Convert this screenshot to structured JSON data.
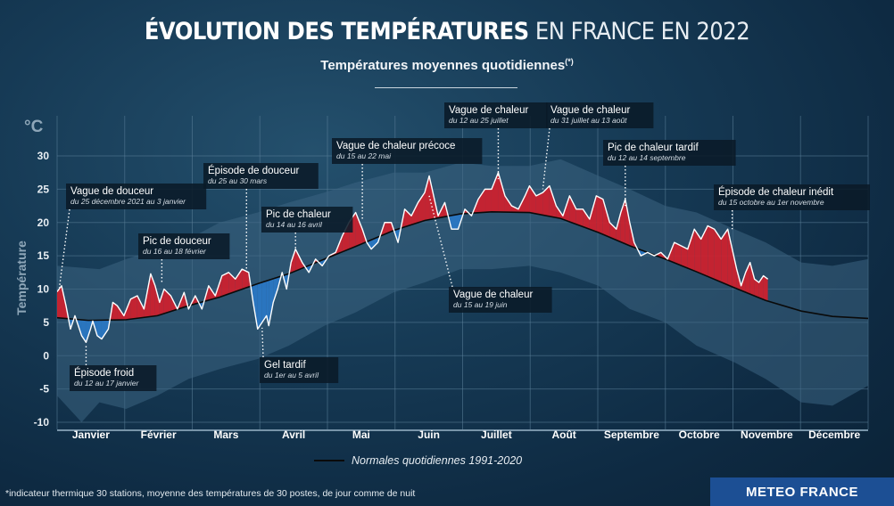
{
  "header": {
    "title_bold": "ÉVOLUTION DES TEMPÉRATURES",
    "title_light": "EN FRANCE EN 2022",
    "subtitle": "Températures moyennes quotidiennes",
    "subtitle_mark": "(*)"
  },
  "footer": {
    "note": "*indicateur thermique 30 stations, moyenne des températures de 30 postes, de jour comme de nuit",
    "brand": "METEO FRANCE"
  },
  "legend": {
    "normal_label": "Normales quotidiennes 1991-2020"
  },
  "colors": {
    "warm_fill": "#d01f2c",
    "cold_fill": "#2a78c6",
    "daily_line": "#ffffff",
    "normal_line": "#0a0a0a",
    "record_band": "#3c6582",
    "grid": "#5a7e98",
    "brand_bg": "#1c4f94"
  },
  "chart_data": {
    "type": "area",
    "title": "ÉVOLUTION DES TEMPÉRATURES EN FRANCE EN 2022",
    "subtitle": "Températures moyennes quotidiennes(*)",
    "ylabel": "Température",
    "yunit": "°C",
    "xlabel": "",
    "ylim": [
      -10,
      30
    ],
    "yticks": [
      "30",
      "25",
      "20",
      "15",
      "10",
      "5",
      "0",
      "-5",
      "-10"
    ],
    "xlim": [
      1,
      365
    ],
    "categories": [
      "Janvier",
      "Février",
      "Mars",
      "Avril",
      "Mai",
      "Juin",
      "Juillet",
      "Août",
      "Septembre",
      "Octobre",
      "Novembre",
      "Décembre"
    ],
    "grid": true,
    "legend_position": "bottom",
    "series": [
      {
        "name": "",
        "role": "daily_2022",
        "x": [
          1,
          3,
          5,
          7,
          9,
          12,
          14,
          16,
          17,
          19,
          21,
          24,
          26,
          28,
          31,
          34,
          37,
          40,
          43,
          45,
          47,
          49,
          52,
          55,
          58,
          60,
          63,
          66,
          69,
          72,
          75,
          78,
          81,
          84,
          87,
          89,
          91,
          93,
          95,
          96,
          98,
          100,
          102,
          104,
          106,
          108,
          111,
          114,
          117,
          120,
          123,
          126,
          129,
          132,
          135,
          138,
          140,
          142,
          145,
          148,
          151,
          154,
          157,
          160,
          163,
          166,
          168,
          170,
          172,
          175,
          178,
          181,
          184,
          187,
          190,
          193,
          196,
          199,
          202,
          205,
          208,
          211,
          213,
          216,
          219,
          222,
          225,
          228,
          231,
          234,
          237,
          240,
          243,
          246,
          249,
          252,
          254,
          256,
          258,
          260,
          263,
          266,
          269,
          272,
          275,
          278,
          281,
          284,
          287,
          290,
          293,
          296,
          299,
          302,
          304,
          306,
          308,
          310,
          312,
          314,
          316,
          318,
          320
        ],
        "values": [
          9.6,
          10.5,
          7.5,
          4.0,
          6.0,
          3.0,
          2.0,
          4.0,
          5.2,
          3.0,
          2.5,
          4.0,
          8.0,
          7.5,
          6.0,
          8.5,
          9.0,
          7.0,
          12.3,
          10.5,
          8.0,
          10.0,
          9.0,
          7.0,
          9.5,
          7.0,
          9.0,
          7.0,
          10.5,
          9.0,
          12.0,
          12.5,
          11.5,
          13.0,
          12.5,
          8.0,
          4.0,
          5.0,
          6.0,
          4.5,
          8.0,
          10.0,
          12.5,
          10.0,
          14.0,
          16.0,
          14.0,
          12.5,
          14.5,
          13.5,
          15.0,
          15.5,
          18.0,
          20.0,
          21.5,
          19.0,
          17.0,
          16.0,
          17.0,
          20.0,
          20.0,
          17.0,
          22.0,
          21.0,
          23.0,
          24.5,
          27.0,
          24.0,
          21.0,
          23.0,
          19.0,
          19.0,
          22.0,
          21.0,
          23.5,
          25.0,
          25.0,
          27.5,
          24.0,
          22.5,
          22.0,
          24.0,
          25.5,
          24.0,
          24.5,
          25.5,
          22.5,
          21.0,
          24.0,
          22.0,
          22.0,
          20.5,
          24.0,
          23.5,
          20.0,
          19.0,
          21.5,
          23.5,
          20.0,
          17.0,
          15.0,
          15.5,
          15.0,
          15.5,
          14.5,
          17.0,
          16.5,
          16.0,
          19.0,
          17.5,
          19.5,
          19.0,
          17.5,
          19.0,
          16.0,
          13.0,
          10.5,
          12.5,
          14.0,
          11.5,
          11.0,
          12.0,
          11.5
        ]
      },
      {
        "name": "Normales quotidiennes 1991-2020",
        "role": "normal",
        "x": [
          1,
          15,
          32,
          46,
          60,
          74,
          91,
          105,
          121,
          135,
          152,
          166,
          182,
          196,
          213,
          227,
          244,
          258,
          274,
          288,
          305,
          319,
          335,
          349,
          365
        ],
        "values": [
          5.7,
          5.3,
          5.4,
          6.0,
          7.5,
          8.8,
          10.8,
          12.3,
          14.5,
          16.4,
          18.8,
          20.3,
          21.3,
          21.6,
          21.5,
          20.6,
          18.5,
          16.5,
          14.5,
          12.6,
          10.2,
          8.3,
          6.7,
          5.9,
          5.6
        ]
      },
      {
        "name": "",
        "role": "record_max",
        "x": [
          1,
          20,
          32,
          46,
          60,
          74,
          91,
          105,
          121,
          135,
          152,
          166,
          182,
          196,
          213,
          227,
          244,
          258,
          274,
          288,
          305,
          319,
          335,
          349,
          365
        ],
        "values": [
          13.5,
          13.0,
          14.5,
          16.0,
          17.5,
          20.0,
          21.5,
          23.0,
          24.5,
          26.0,
          27.5,
          27.5,
          29.0,
          28.5,
          28.5,
          29.5,
          27.0,
          25.0,
          22.5,
          21.5,
          19.0,
          17.0,
          14.0,
          13.5,
          14.5
        ]
      },
      {
        "name": "",
        "role": "record_min",
        "x": [
          1,
          12,
          20,
          32,
          46,
          60,
          74,
          91,
          105,
          121,
          135,
          152,
          166,
          182,
          196,
          213,
          227,
          244,
          258,
          274,
          288,
          305,
          319,
          335,
          349,
          365
        ],
        "values": [
          -6.0,
          -10.0,
          -7.0,
          -8.0,
          -6.0,
          -3.5,
          -2.0,
          -0.5,
          1.5,
          4.5,
          6.5,
          9.5,
          11.0,
          13.0,
          13.0,
          13.5,
          12.5,
          10.5,
          7.0,
          5.0,
          1.5,
          -1.0,
          -3.5,
          -7.0,
          -7.5,
          -4.5
        ]
      }
    ],
    "annotations": [
      {
        "title": "Vague de douceur",
        "dates": "du 25 décembre 2021 au 3 janvier",
        "x": 2,
        "y": 10.2,
        "label_y": 26.2
      },
      {
        "title": "Épisode froid",
        "dates": "du 12 au 17 janvier",
        "x": 14,
        "y": 1.6,
        "label_y": -1.0
      },
      {
        "title": "Pic de douceur",
        "dates": "du 16 au 18 février",
        "x": 48,
        "y": 11.0,
        "label_y": 17.2
      },
      {
        "title": "Épisode de douceur",
        "dates": "du 25 au 30 mars",
        "x": 86,
        "y": 13.0,
        "label_y": 28.8
      },
      {
        "title": "Gel tardif",
        "dates": "du 1er au 5 avril",
        "x": 93,
        "y": 4.2,
        "label_y": -0.5
      },
      {
        "title": "Pic de chaleur",
        "dates": "du 14 au 16 avril",
        "x": 108,
        "y": 15.8,
        "label_y": 21.3
      },
      {
        "title": "Vague de chaleur précoce",
        "dates": "du 15 au 22 mai",
        "x": 138,
        "y": 20.5,
        "label_y": 32.8
      },
      {
        "title": "Vague de chaleur",
        "dates": "du 15 au 19 juin",
        "x": 168,
        "y": 24.0,
        "label_y": 10.0
      },
      {
        "title": "Vague de chaleur",
        "dates": "du 12 au 25 juillet",
        "x": 199,
        "y": 26.5,
        "label_y": 37.2
      },
      {
        "title": "Vague de chaleur",
        "dates": "du 31 juillet au 13 août",
        "x": 219,
        "y": 25.0,
        "label_y": 37.2
      },
      {
        "title": "Pic de chaleur tardif",
        "dates": "du 12 au 14 septembre",
        "x": 256,
        "y": 22.5,
        "label_y": 31.0
      },
      {
        "title": "Épisode de chaleur inédit",
        "dates": "du 15 octobre au 1er novembre",
        "x": 304,
        "y": 19.0,
        "label_y": 26.5
      }
    ]
  }
}
